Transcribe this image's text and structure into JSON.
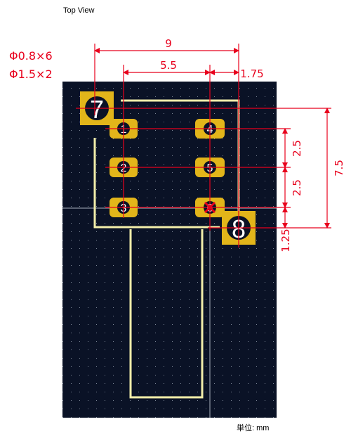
{
  "title": "Top View",
  "units_label": "単位: mm",
  "hole_specs": [
    "Φ0.8×6",
    "Φ1.5×2"
  ],
  "dimensions": {
    "total_width": "9",
    "pin_pitch_x": "5.5",
    "pin_to_mount_x": "1.75",
    "row_pitch_1": "2.5",
    "row_pitch_2": "2.5",
    "row_to_mount_y": "1.25",
    "total_height": "7.5"
  },
  "pins": [
    {
      "label": "1",
      "kind": "signal"
    },
    {
      "label": "2",
      "kind": "signal"
    },
    {
      "label": "3",
      "kind": "signal"
    },
    {
      "label": "4",
      "kind": "signal"
    },
    {
      "label": "5",
      "kind": "signal"
    },
    {
      "label": "6",
      "kind": "signal"
    }
  ],
  "mounting_pads": [
    {
      "label": "7"
    },
    {
      "label": "8"
    }
  ],
  "colors": {
    "board": "#0a1226",
    "pad": "#e2b51a",
    "silk": "#f2eeaa",
    "dimension": "#e8001c",
    "grid": "#7a8494"
  }
}
